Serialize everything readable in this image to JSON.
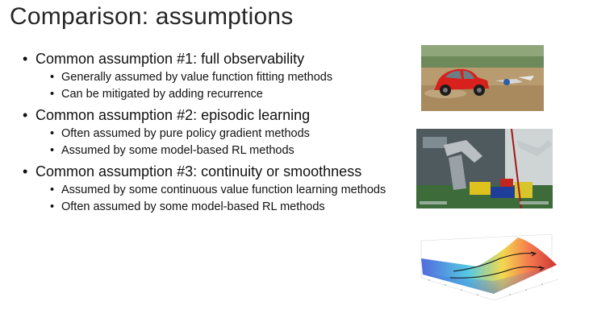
{
  "slide": {
    "title": "Comparison: assumptions",
    "bullets": [
      {
        "text": "Common assumption #1: full observability",
        "subs": [
          "Generally assumed by value function fitting methods",
          "Can be mitigated by adding recurrence"
        ]
      },
      {
        "text": "Common assumption #2: episodic learning",
        "subs": [
          "Often assumed by pure policy gradient methods",
          "Assumed by some model-based RL methods"
        ]
      },
      {
        "text": "Common assumption #3: continuity or smoothness",
        "subs": [
          "Assumed by some continuous value function learning methods",
          "Often assumed by some model-based RL methods"
        ]
      }
    ]
  },
  "images": [
    {
      "name": "car-image"
    },
    {
      "name": "robot-image"
    },
    {
      "name": "surface-plot-image"
    }
  ]
}
